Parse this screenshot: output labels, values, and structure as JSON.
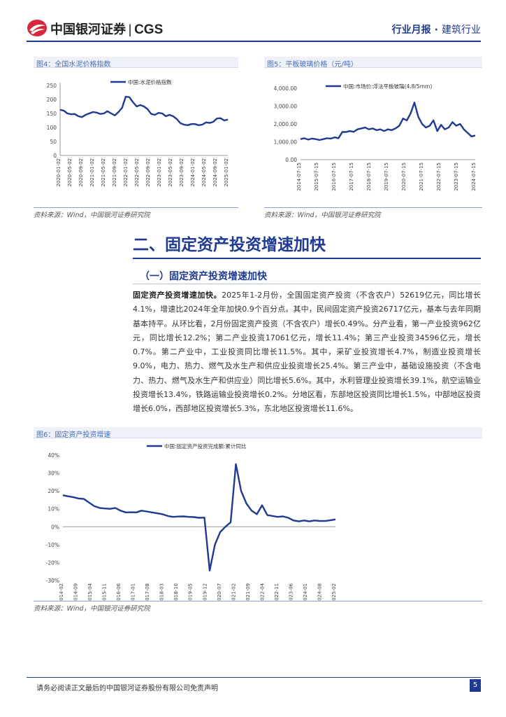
{
  "header": {
    "logo_text": "中国银河证券",
    "logo_sep": "|",
    "logo_en": "CGS",
    "report_type": "行业月报",
    "dot": "·",
    "industry": "建筑行业"
  },
  "figures": {
    "fig4": {
      "caption": "图4：全国水泥价格指数",
      "source": "资料来源：Wind，中国银河证券研究院"
    },
    "fig5": {
      "caption": "图5：平板玻璃价格（元/吨）",
      "source": "资料来源：Wind，中国银河证券研究院"
    },
    "fig6": {
      "caption": "图6：固定资产投资增速",
      "source": "资料来源：Wind，中国银河证券研究院"
    }
  },
  "section": {
    "h2": "二、固定资产投资增速加快",
    "h3": "（一）固定资产投资增速加快",
    "lead": "固定资产投资增速加快。",
    "body": "2025年1-2月份，全国固定资产投资（不含农户）52619亿元，同比增长4.1%，增速比2024年全年加快0.9个百分点。其中，民间固定资产投资26717亿元，基本与去年同期基本持平。从环比看，2月份固定资产投资（不含农户）增长0.49%。分产业看，第一产业投资962亿元，同比增长12.2%；第二产业投资17061亿元，增长11.4%；第三产业投资34596亿元，增长0.7%。第二产业中，工业投资同比增长11.5%。其中，采矿业投资增长4.7%，制造业投资增长9.0%，电力、热力、燃气及水生产和供应业投资增长25.4%。第三产业中，基础设施投资（不含电力、热力、燃气及水生产和供应业）同比增长5.6%。其中，水利管理业投资增长39.1%，航空运输业投资增长13.4%，铁路运输业投资增长0.2%。分地区看，东部地区投资同比增长1.5%，中部地区投资增长6.0%，西部地区投资增长5.3%，东北地区投资增长11.6%。"
  },
  "footer": {
    "disclaimer": "请务必阅读正文最后的中国银河证券股份有限公司免责声明",
    "page": "5"
  },
  "chart_data": [
    {
      "type": "line",
      "title": "图4：全国水泥价格指数",
      "series": [
        {
          "name": "中国:水泥价格指数",
          "color": "#1f3a93"
        }
      ],
      "ylim": [
        0,
        250
      ],
      "yticks": [
        "0",
        "50",
        "100",
        "150",
        "200",
        "250"
      ],
      "xticks": [
        "2020-01-02",
        "2020-05-02",
        "2020-09-02",
        "2021-01-02",
        "2021-05-02",
        "2021-09-02",
        "2022-01-02",
        "2022-05-02",
        "2022-09-02",
        "2023-01-02",
        "2023-05-02",
        "2023-09-02",
        "2024-01-02",
        "2024-05-02",
        "2024-09-02",
        "2025-01-02"
      ],
      "values": [
        163,
        160,
        150,
        147,
        148,
        140,
        137,
        145,
        150,
        155,
        153,
        148,
        150,
        158,
        150,
        143,
        155,
        170,
        210,
        208,
        190,
        175,
        180,
        175,
        165,
        148,
        145,
        152,
        150,
        140,
        145,
        140,
        130,
        115,
        110,
        108,
        112,
        112,
        108,
        110,
        118,
        116,
        120,
        132,
        133,
        125,
        128
      ]
    },
    {
      "type": "line",
      "title": "图5：平板玻璃价格（元/吨）",
      "series": [
        {
          "name": "中国:市场价:浮法平板玻璃(4.8/5mm)",
          "color": "#1f3a93"
        }
      ],
      "ylim": [
        0,
        4000
      ],
      "yticks": [
        "0.00",
        "1,000.00",
        "2,000.00",
        "3,000.00",
        "4,000.00"
      ],
      "xticks": [
        "2014-07-15",
        "2015-07-15",
        "2016-07-15",
        "2017-07-15",
        "2018-07-15",
        "2019-07-15",
        "2020-07-15",
        "2021-07-15",
        "2022-07-15",
        "2023-07-15",
        "2024-07-15"
      ],
      "values": [
        1150,
        1200,
        1120,
        1180,
        1150,
        1100,
        1150,
        1200,
        1180,
        1250,
        1200,
        1550,
        1550,
        1600,
        1560,
        1700,
        1750,
        1800,
        1700,
        1750,
        1650,
        1700,
        1600,
        1700,
        1650,
        1750,
        1900,
        2300,
        2200,
        2600,
        3200,
        2400,
        2000,
        1800,
        1900,
        2200,
        1600,
        1950,
        1700,
        1800,
        2100,
        1900,
        2000,
        1700,
        1500,
        1300,
        1350
      ]
    },
    {
      "type": "line",
      "title": "图6：固定资产投资增速",
      "series": [
        {
          "name": "中国:固定资产投资完成额:累计同比",
          "color": "#1f3a93"
        }
      ],
      "ylim": [
        -30,
        40
      ],
      "yticks": [
        "-30%",
        "-20%",
        "-10%",
        "0%",
        "10%",
        "20%",
        "30%",
        "40%"
      ],
      "xticks": [
        "2014-02",
        "2014-09",
        "2015-04",
        "2015-11",
        "2016-06",
        "2017-01",
        "2017-08",
        "2018-03",
        "2018-10",
        "2019-05",
        "2019-12",
        "2020-07",
        "2021-02",
        "2021-09",
        "2022-04",
        "2022-11",
        "2023-06",
        "2024-01",
        "2024-08",
        "2025-02"
      ],
      "values": [
        17.6,
        17.0,
        16.5,
        15.8,
        15.5,
        13.5,
        11.5,
        10.5,
        10.2,
        10.0,
        10.5,
        9.0,
        8.0,
        8.1,
        8.0,
        9.0,
        8.5,
        8.0,
        7.5,
        7.0,
        6.0,
        5.5,
        5.7,
        5.8,
        5.5,
        5.4,
        5.0,
        5.1,
        -24.5,
        -10.0,
        -3.0,
        0.0,
        2.5,
        35.0,
        20.0,
        13.0,
        9.0,
        7.0,
        12.0,
        6.5,
        6.0,
        5.5,
        5.8,
        5.0,
        3.5,
        3.0,
        3.5,
        3.0,
        3.5,
        3.2,
        3.2,
        3.6,
        4.1
      ]
    }
  ]
}
